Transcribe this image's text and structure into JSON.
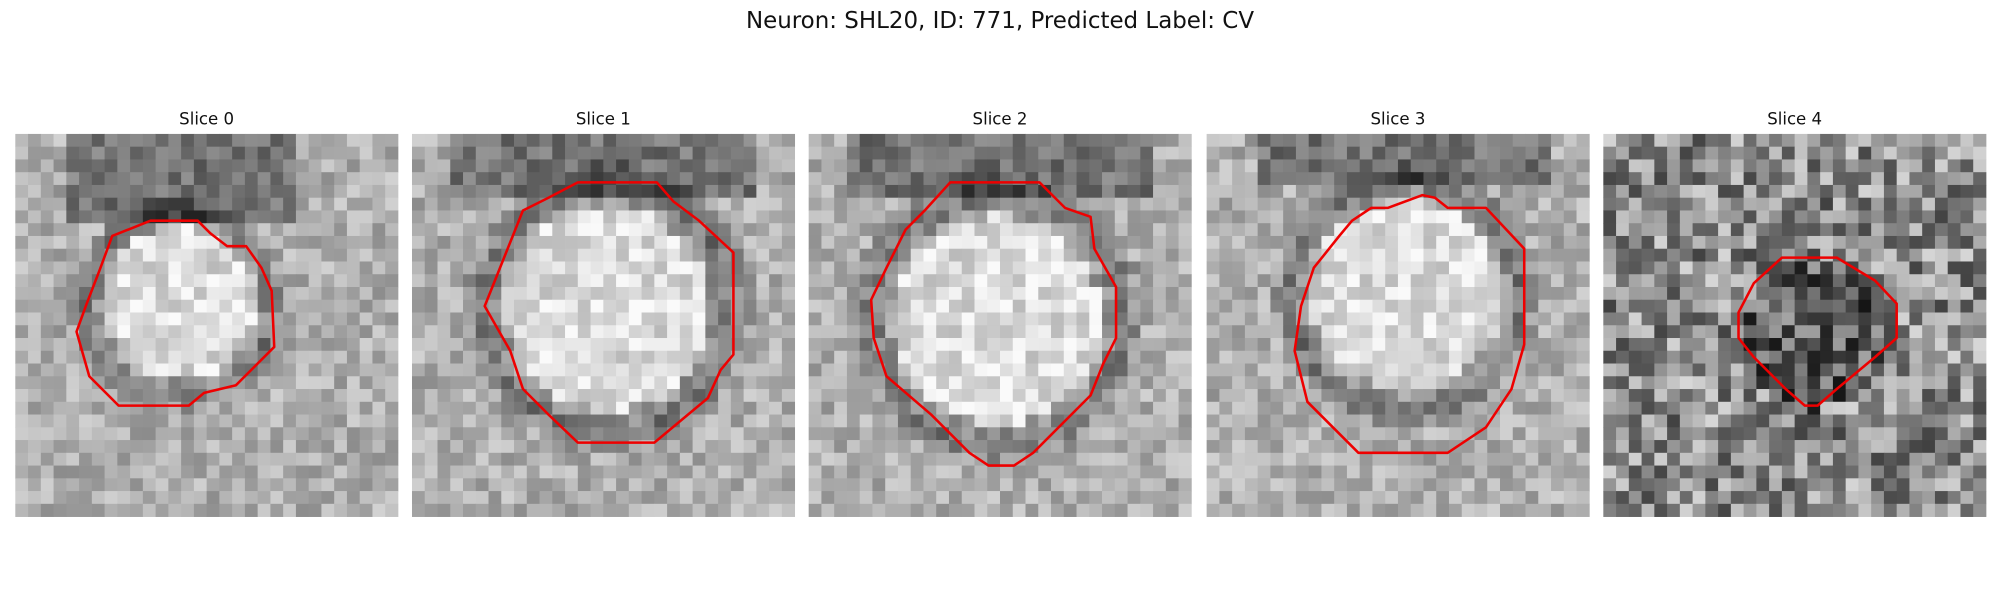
{
  "title": "Neuron: SHL20, ID: 771, Predicted Label: CV",
  "panels": [
    {
      "title": "Slice 0"
    },
    {
      "title": "Slice 1"
    },
    {
      "title": "Slice 2"
    },
    {
      "title": "Slice 3"
    },
    {
      "title": "Slice 4"
    }
  ]
}
